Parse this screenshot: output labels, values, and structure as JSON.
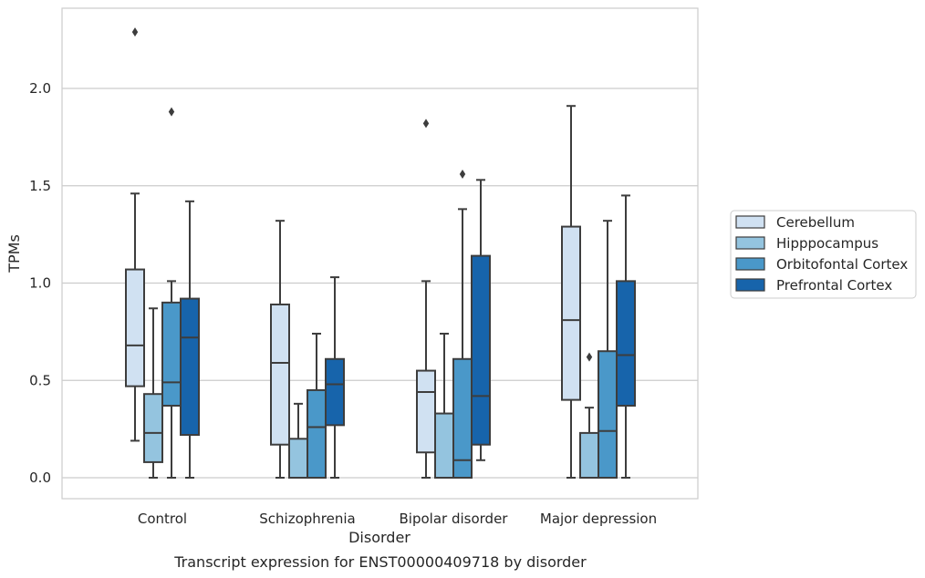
{
  "caption": "Transcript expression for ENST00000409718 by disorder",
  "chart_data": {
    "type": "boxplot",
    "xlabel": "Disorder",
    "ylabel": "TPMs",
    "ylim": [
      -0.11,
      2.42
    ],
    "yticks": [
      "0.0",
      "0.5",
      "1.0",
      "1.5",
      "2.0"
    ],
    "grid": "horizontal",
    "legend_position": "right",
    "categories": [
      "Control",
      "Schizophrenia",
      "Bipolar disorder",
      "Major depression"
    ],
    "series": [
      {
        "name": "Cerebellum",
        "color": "#d0e1f2",
        "boxes": [
          {
            "whislo": 0.19,
            "q1": 0.47,
            "med": 0.68,
            "q3": 1.07,
            "whishi": 1.46,
            "fliers": [
              2.29
            ]
          },
          {
            "whislo": 0.0,
            "q1": 0.17,
            "med": 0.59,
            "q3": 0.89,
            "whishi": 1.32,
            "fliers": []
          },
          {
            "whislo": 0.0,
            "q1": 0.13,
            "med": 0.44,
            "q3": 0.55,
            "whishi": 1.01,
            "fliers": [
              1.82
            ]
          },
          {
            "whislo": 0.0,
            "q1": 0.4,
            "med": 0.81,
            "q3": 1.29,
            "whishi": 1.91,
            "fliers": []
          }
        ]
      },
      {
        "name": "Hipppocampus",
        "color": "#94c4df",
        "boxes": [
          {
            "whislo": 0.0,
            "q1": 0.08,
            "med": 0.23,
            "q3": 0.43,
            "whishi": 0.87,
            "fliers": []
          },
          {
            "whislo": 0.0,
            "q1": 0.0,
            "med": 0.0,
            "q3": 0.2,
            "whishi": 0.38,
            "fliers": []
          },
          {
            "whislo": 0.0,
            "q1": 0.0,
            "med": 0.0,
            "q3": 0.33,
            "whishi": 0.74,
            "fliers": []
          },
          {
            "whislo": 0.0,
            "q1": 0.0,
            "med": 0.0,
            "q3": 0.23,
            "whishi": 0.36,
            "fliers": [
              0.62
            ]
          }
        ]
      },
      {
        "name": "Orbitofontal Cortex",
        "color": "#4a98c9",
        "boxes": [
          {
            "whislo": 0.0,
            "q1": 0.37,
            "med": 0.49,
            "q3": 0.9,
            "whishi": 1.01,
            "fliers": [
              1.88
            ]
          },
          {
            "whislo": 0.0,
            "q1": 0.0,
            "med": 0.26,
            "q3": 0.45,
            "whishi": 0.74,
            "fliers": []
          },
          {
            "whislo": 0.0,
            "q1": 0.0,
            "med": 0.09,
            "q3": 0.61,
            "whishi": 1.38,
            "fliers": [
              1.56
            ]
          },
          {
            "whislo": 0.0,
            "q1": 0.0,
            "med": 0.24,
            "q3": 0.65,
            "whishi": 1.32,
            "fliers": []
          }
        ]
      },
      {
        "name": "Prefrontal Cortex",
        "color": "#1764ab",
        "boxes": [
          {
            "whislo": 0.0,
            "q1": 0.22,
            "med": 0.72,
            "q3": 0.92,
            "whishi": 1.42,
            "fliers": []
          },
          {
            "whislo": 0.0,
            "q1": 0.27,
            "med": 0.48,
            "q3": 0.61,
            "whishi": 1.03,
            "fliers": []
          },
          {
            "whislo": 0.09,
            "q1": 0.17,
            "med": 0.42,
            "q3": 1.14,
            "whishi": 1.53,
            "fliers": []
          },
          {
            "whislo": 0.0,
            "q1": 0.37,
            "med": 0.63,
            "q3": 1.01,
            "whishi": 1.45,
            "fliers": []
          }
        ]
      }
    ]
  }
}
